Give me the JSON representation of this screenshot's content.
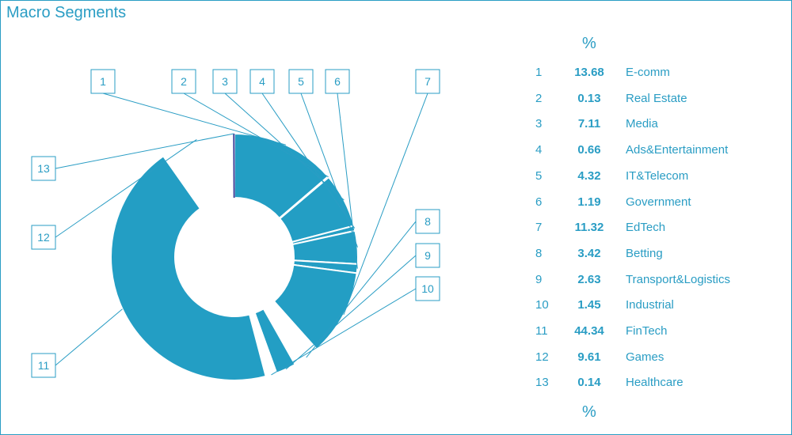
{
  "title": "Macro Segments",
  "percent_label": "%",
  "colors": {
    "accent": "#2a9dc4",
    "slice": "#239ec4",
    "highlight": "#3b3f96",
    "background": "#ffffff"
  },
  "chart_data": {
    "type": "pie",
    "title": "Macro Segments",
    "donut": true,
    "unit": "%",
    "series": [
      {
        "values": [
          13.68,
          0.13,
          7.11,
          0.66,
          4.32,
          1.19,
          11.32,
          3.42,
          2.63,
          1.45,
          44.34,
          9.61,
          0.14
        ]
      }
    ],
    "categories": [
      "E-comm",
      "Real Estate",
      "Media",
      "Ads&Entertainment",
      "IT&Telecom",
      "Government",
      "EdTech",
      "Betting",
      "Transport&Logistics",
      "Industrial",
      "FinTech",
      "Games",
      "Healthcare"
    ],
    "slice_labels": [
      "1",
      "2",
      "3",
      "4",
      "5",
      "6",
      "7",
      "8",
      "9",
      "10",
      "11",
      "12",
      "13"
    ],
    "slice_fill": [
      "blue",
      "blue",
      "blue",
      "blue",
      "blue",
      "blue",
      "blue",
      "white",
      "blue",
      "white",
      "blue",
      "white",
      "highlight"
    ],
    "legend_position": "right"
  },
  "legend": [
    {
      "num": "1",
      "value": "13.68",
      "name": "E-comm"
    },
    {
      "num": "2",
      "value": "0.13",
      "name": "Real Estate"
    },
    {
      "num": "3",
      "value": "7.11",
      "name": "Media"
    },
    {
      "num": "4",
      "value": "0.66",
      "name": "Ads&Entertainment"
    },
    {
      "num": "5",
      "value": "4.32",
      "name": "IT&Telecom"
    },
    {
      "num": "6",
      "value": "1.19",
      "name": "Government"
    },
    {
      "num": "7",
      "value": "11.32",
      "name": "EdTech"
    },
    {
      "num": "8",
      "value": "3.42",
      "name": "Betting"
    },
    {
      "num": "9",
      "value": "2.63",
      "name": "Transport&Logistics"
    },
    {
      "num": "10",
      "value": "1.45",
      "name": "Industrial"
    },
    {
      "num": "11",
      "value": "44.34",
      "name": "FinTech"
    },
    {
      "num": "12",
      "value": "9.61",
      "name": "Games"
    },
    {
      "num": "13",
      "value": "0.14",
      "name": "Healthcare"
    }
  ]
}
